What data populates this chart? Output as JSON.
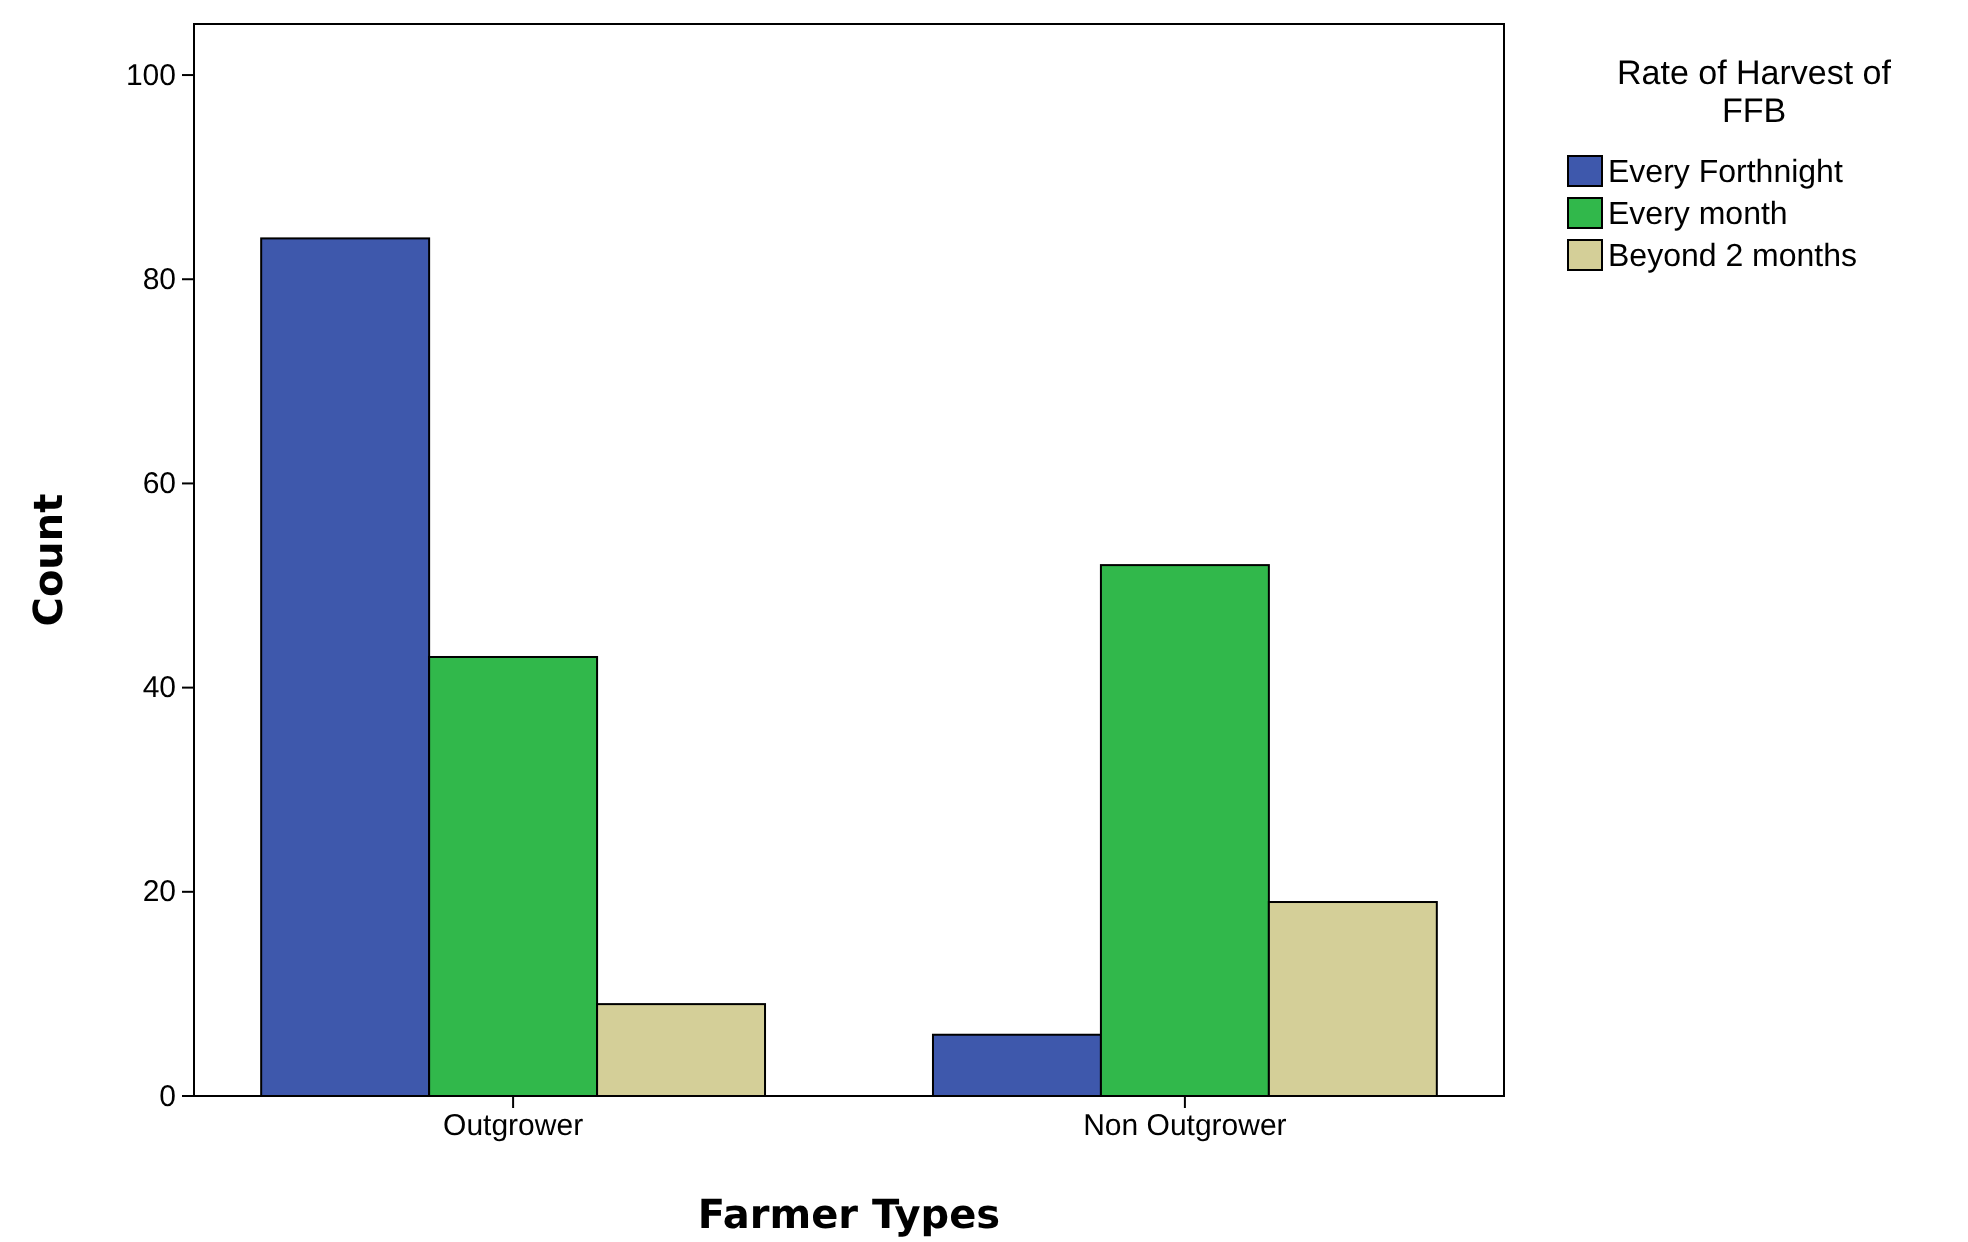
{
  "chart_data": {
    "type": "bar",
    "xlabel": "Farmer Types",
    "ylabel": "Count",
    "legend_title": "Rate of Harvest of FFB",
    "categories": [
      "Outgrower",
      "Non Outgrower"
    ],
    "series": [
      {
        "name": "Every Forthnight",
        "color": "#3e58ac",
        "values": [
          84,
          6
        ]
      },
      {
        "name": "Every month",
        "color": "#31b84b",
        "values": [
          43,
          52
        ]
      },
      {
        "name": "Beyond 2 months",
        "color": "#d4cf98",
        "values": [
          9,
          19
        ]
      }
    ],
    "ylim": [
      0,
      105
    ],
    "yticks": [
      0,
      20,
      40,
      60,
      80,
      100
    ],
    "grid": false,
    "legend": "right"
  }
}
